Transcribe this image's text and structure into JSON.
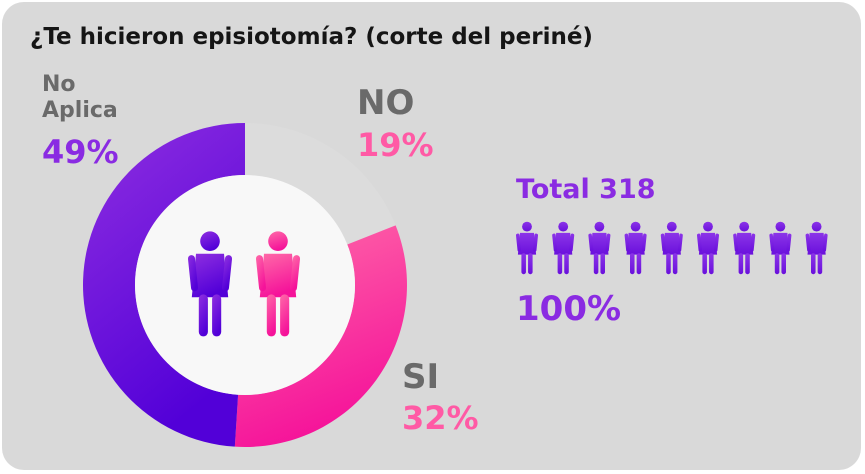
{
  "chart_data": {
    "type": "pie",
    "title": "¿Te hicieron episiotomía? (corte del periné)",
    "slices": [
      {
        "label": "NO",
        "value": 19,
        "value_label": "19%",
        "color": "#dcdcdc"
      },
      {
        "label": "SI",
        "value": 32,
        "value_label": "32%",
        "color": "#ff3ea0"
      },
      {
        "label_lines": [
          "No",
          "Aplica"
        ],
        "value": 49,
        "value_label": "49%",
        "color": "#6a12e0"
      }
    ],
    "total_label": "Total 318",
    "total_percent": "100%",
    "icon_count": 9
  },
  "colors": {
    "purple": "#8a2be2",
    "pink": "#ff5aa5",
    "grey": "#6a6a6a"
  }
}
